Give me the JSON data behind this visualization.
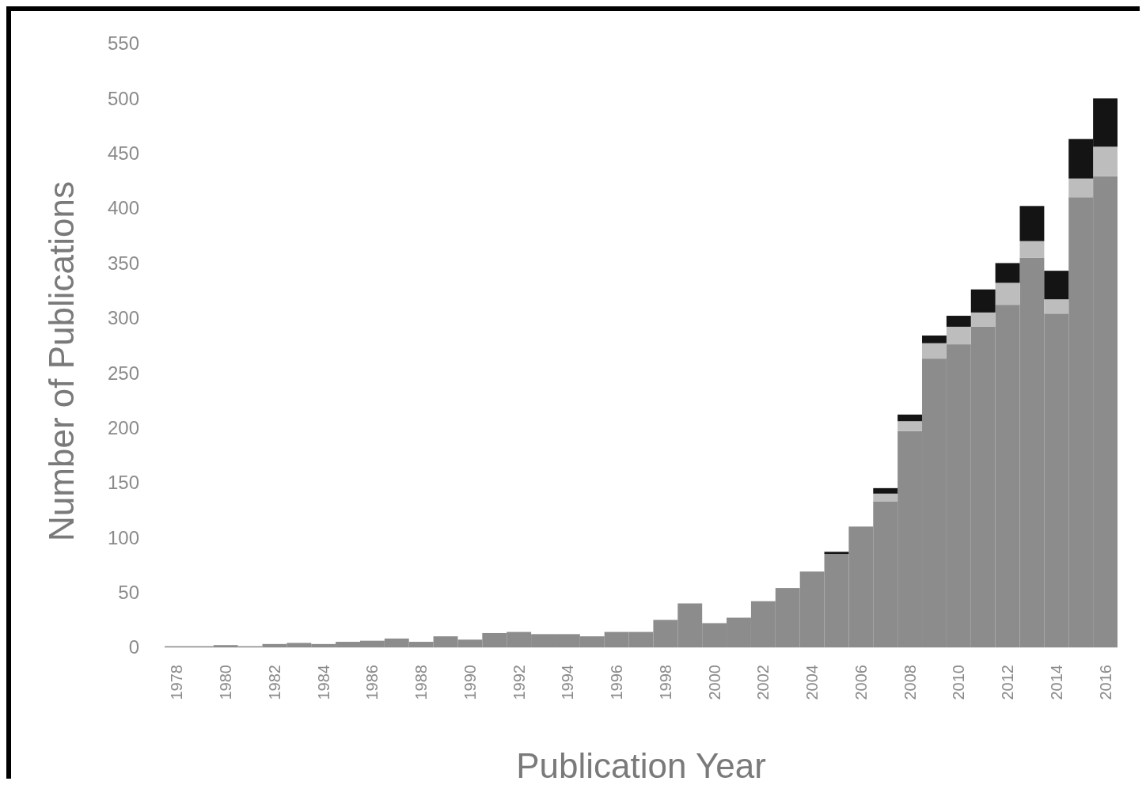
{
  "chart_data": {
    "type": "bar",
    "stacked": true,
    "xlabel": "Publication Year",
    "ylabel": "Number of Publications",
    "categories": [
      "1978",
      null,
      "1980",
      null,
      "1982",
      null,
      "1984",
      null,
      "1986",
      null,
      "1988",
      null,
      "1990",
      null,
      "1992",
      null,
      "1994",
      null,
      "1996",
      null,
      "1998",
      null,
      "2000",
      null,
      "2002",
      null,
      "2004",
      null,
      "2006",
      null,
      "2008",
      null,
      "2010",
      null,
      "2012",
      null,
      "2014",
      null,
      "2016"
    ],
    "series": [
      {
        "color": "#8c8c8c",
        "values": [
          1,
          1,
          2,
          1,
          3,
          4,
          3,
          5,
          6,
          8,
          5,
          10,
          7,
          13,
          14,
          12,
          12,
          10,
          14,
          14,
          25,
          40,
          22,
          27,
          42,
          54,
          69,
          85,
          110,
          133,
          197,
          263,
          276,
          292,
          312,
          355,
          304,
          410,
          429
        ]
      },
      {
        "color": "#bdbdbd",
        "values": [
          0,
          0,
          0,
          0,
          0,
          0,
          0,
          0,
          0,
          0,
          0,
          0,
          0,
          0,
          0,
          0,
          0,
          0,
          0,
          0,
          0,
          0,
          0,
          0,
          0,
          0,
          0,
          0,
          0,
          7,
          9,
          14,
          16,
          13,
          20,
          15,
          13,
          17,
          27
        ]
      },
      {
        "color": "#141414",
        "values": [
          0,
          0,
          0,
          0,
          0,
          0,
          0,
          0,
          0,
          0,
          0,
          0,
          0,
          0,
          0,
          0,
          0,
          0,
          0,
          0,
          0,
          0,
          0,
          0,
          0,
          0,
          0,
          2,
          0,
          5,
          6,
          7,
          10,
          21,
          18,
          32,
          26,
          36,
          44
        ]
      }
    ],
    "ylim": [
      0,
      550
    ],
    "yticks": [
      0,
      50,
      100,
      150,
      200,
      250,
      300,
      350,
      400,
      450,
      500,
      550
    ],
    "grid": false
  }
}
